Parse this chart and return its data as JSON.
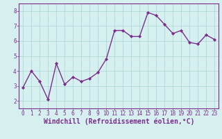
{
  "x": [
    0,
    1,
    2,
    3,
    4,
    5,
    6,
    7,
    8,
    9,
    10,
    11,
    12,
    13,
    14,
    15,
    16,
    17,
    18,
    19,
    20,
    21,
    22,
    23
  ],
  "y": [
    2.9,
    4.0,
    3.3,
    2.1,
    4.5,
    3.1,
    3.6,
    3.3,
    3.5,
    3.9,
    4.8,
    6.7,
    6.7,
    6.3,
    6.3,
    7.9,
    7.7,
    7.1,
    6.5,
    6.7,
    5.9,
    5.8,
    6.4,
    6.1
  ],
  "line_color": "#7b2d8b",
  "marker": "D",
  "marker_size": 2.2,
  "bg_color": "#d6f0f0",
  "grid_color": "#b0d8d8",
  "xlabel": "Windchill (Refroidissement éolien,°C)",
  "xlim": [
    -0.5,
    23.5
  ],
  "ylim": [
    1.5,
    8.5
  ],
  "yticks": [
    2,
    3,
    4,
    5,
    6,
    7,
    8
  ],
  "xticks": [
    0,
    1,
    2,
    3,
    4,
    5,
    6,
    7,
    8,
    9,
    10,
    11,
    12,
    13,
    14,
    15,
    16,
    17,
    18,
    19,
    20,
    21,
    22,
    23
  ],
  "tick_fontsize": 5.5,
  "xlabel_fontsize": 7.0,
  "line_width": 1.0,
  "axis_color": "#7b2d8b",
  "spine_color": "#7b2d8b"
}
